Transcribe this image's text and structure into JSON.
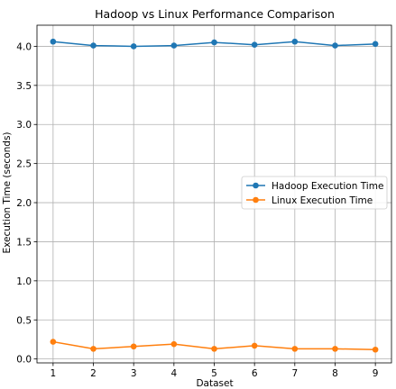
{
  "chart_data": {
    "type": "line",
    "title": "Hadoop vs Linux Performance Comparison",
    "xlabel": "Dataset",
    "ylabel": "Execution Time (seconds)",
    "x": [
      1,
      2,
      3,
      4,
      5,
      6,
      7,
      8,
      9
    ],
    "xticks": [
      "1",
      "2",
      "3",
      "4",
      "5",
      "6",
      "7",
      "8",
      "9"
    ],
    "yticks": [
      "0.0",
      "0.5",
      "1.0",
      "1.5",
      "2.0",
      "2.5",
      "3.0",
      "3.5",
      "4.0"
    ],
    "xlim": [
      0.6,
      9.4
    ],
    "ylim": [
      -0.05,
      4.27
    ],
    "grid": true,
    "legend_position": "center-right",
    "series": [
      {
        "name": "Hadoop Execution Time",
        "color": "#1f77b4",
        "values": [
          4.06,
          4.01,
          4.0,
          4.01,
          4.05,
          4.02,
          4.06,
          4.01,
          4.03
        ]
      },
      {
        "name": "Linux Execution Time",
        "color": "#ff7f0e",
        "values": [
          0.22,
          0.13,
          0.16,
          0.19,
          0.13,
          0.17,
          0.13,
          0.13,
          0.12
        ]
      }
    ]
  }
}
